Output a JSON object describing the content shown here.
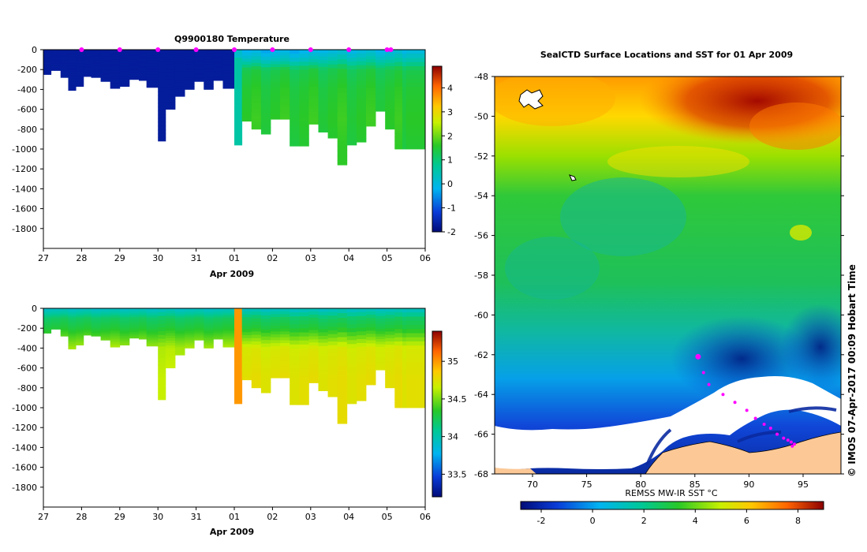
{
  "figure_texts": {
    "credit": "© IMOS 07-Apr-2017 00:09 Hobart Time"
  },
  "chart_data": [
    {
      "type": "heatmap",
      "title": "Q9900180  Temperature",
      "xlabel": "Apr 2009",
      "ylabel": "",
      "x_ticks": [
        "27",
        "28",
        "29",
        "30",
        "31",
        "01",
        "02",
        "03",
        "04",
        "05",
        "06"
      ],
      "y_ticks": [
        "0",
        "-200",
        "-400",
        "-600",
        "-800",
        "-1000",
        "-1200",
        "-1400",
        "-1600",
        "-1800"
      ],
      "xlim": [
        "27 Mar 2009",
        "06 Apr 2009"
      ],
      "ylim": [
        -2000,
        0
      ],
      "colorbar": {
        "ticks": [
          "4",
          "3",
          "2",
          "1",
          "0",
          "-1",
          "-2"
        ],
        "range": [
          -2.0,
          4.9
        ]
      },
      "profile_times": [
        27.0,
        27.2,
        27.45,
        27.65,
        27.85,
        28.05,
        28.25,
        28.5,
        28.75,
        29.0,
        29.25,
        29.5,
        29.7,
        30.0,
        30.2,
        30.45,
        30.7,
        30.95,
        31.2,
        31.45,
        31.7,
        32.0,
        32.2,
        32.45,
        32.7,
        32.95,
        33.2,
        33.45,
        33.7,
        33.95,
        34.2,
        34.45,
        34.7,
        34.95,
        35.2,
        35.45,
        35.7,
        35.95,
        36.2,
        36.4,
        36.5
      ],
      "profile_max_depths": [
        250,
        210,
        280,
        410,
        370,
        270,
        280,
        320,
        390,
        370,
        300,
        310,
        380,
        920,
        600,
        470,
        400,
        320,
        400,
        310,
        390,
        960,
        720,
        800,
        850,
        700,
        700,
        970,
        970,
        750,
        830,
        890,
        1160,
        960,
        930,
        770,
        620,
        800,
        1000,
        1000,
        1000
      ],
      "profile_markers_days": [
        28,
        29,
        30,
        31,
        32,
        33,
        34,
        35,
        36,
        36.1
      ],
      "profile_temperatures": {
        "levels_m": [
          0,
          100,
          200,
          400,
          700,
          1000
        ],
        "early_cold_value": -1.7,
        "later_surface_value": -0.3,
        "later_deep_value": 1.5
      }
    },
    {
      "type": "heatmap",
      "title": "",
      "xlabel": "Apr 2009",
      "ylabel": "",
      "x_ticks": [
        "27",
        "28",
        "29",
        "30",
        "31",
        "01",
        "02",
        "03",
        "04",
        "05",
        "06"
      ],
      "y_ticks": [
        "0",
        "-200",
        "-400",
        "-600",
        "-800",
        "-1000",
        "-1200",
        "-1400",
        "-1600",
        "-1800"
      ],
      "xlim": [
        "27 Mar 2009",
        "06 Apr 2009"
      ],
      "ylim": [
        -2000,
        0
      ],
      "colorbar": {
        "ticks": [
          "35",
          "34.5",
          "34",
          "33.5"
        ],
        "range": [
          33.2,
          35.4
        ]
      },
      "profile_salinity": {
        "levels_m": [
          0,
          100,
          200,
          400,
          700,
          1000
        ],
        "surface_value": 33.9,
        "shallow_value": 34.2,
        "deep_value": 34.7,
        "late_deep_value": 34.75
      }
    },
    {
      "type": "heatmap",
      "title": "SealCTD Surface Locations and SST for 01 Apr 2009",
      "xlabel": "",
      "ylabel": "",
      "x_ticks": [
        "70",
        "75",
        "80",
        "85",
        "90",
        "95"
      ],
      "y_ticks": [
        "-48",
        "-50",
        "-52",
        "-54",
        "-56",
        "-58",
        "-60",
        "-62",
        "-64",
        "-66",
        "-68"
      ],
      "xlim": [
        66.5,
        98.5
      ],
      "ylim": [
        -68,
        -48
      ],
      "colorbar": {
        "label": "REMSS MW-IR SST °C",
        "ticks": [
          "-2",
          "0",
          "2",
          "4",
          "6",
          "8"
        ],
        "range": [
          -2.8,
          9.0
        ]
      },
      "track_lon": [
        85.3,
        85.8,
        86.3,
        87.6,
        88.7,
        89.8,
        90.6,
        91.4,
        92.0,
        92.6,
        93.2,
        93.6,
        93.9,
        94.2,
        94.0
      ],
      "track_lat": [
        -62.1,
        -62.9,
        -63.5,
        -64.0,
        -64.4,
        -64.8,
        -65.2,
        -65.5,
        -65.7,
        -66.0,
        -66.2,
        -66.3,
        -66.4,
        -66.5,
        -66.6
      ]
    }
  ]
}
